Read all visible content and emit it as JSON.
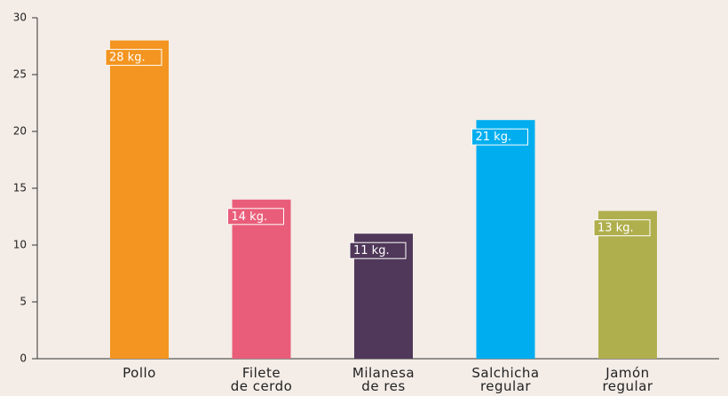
{
  "chart_data": {
    "type": "bar",
    "categories": [
      "Pollo",
      "Filete\nde cerdo",
      "Milanesa\nde res",
      "Salchicha\nregular",
      "Jamón\nregular"
    ],
    "values": [
      28,
      14,
      11,
      21,
      13
    ],
    "value_labels": [
      "28 kg.",
      "14 kg.",
      "11 kg.",
      "21 kg.",
      "13 kg."
    ],
    "colors": [
      "#f39520",
      "#e95d7a",
      "#50385a",
      "#00aeef",
      "#b0af4e"
    ],
    "ylim": [
      0,
      30
    ],
    "yticks": [
      0,
      5,
      10,
      15,
      20,
      25,
      30
    ],
    "grid": false
  }
}
